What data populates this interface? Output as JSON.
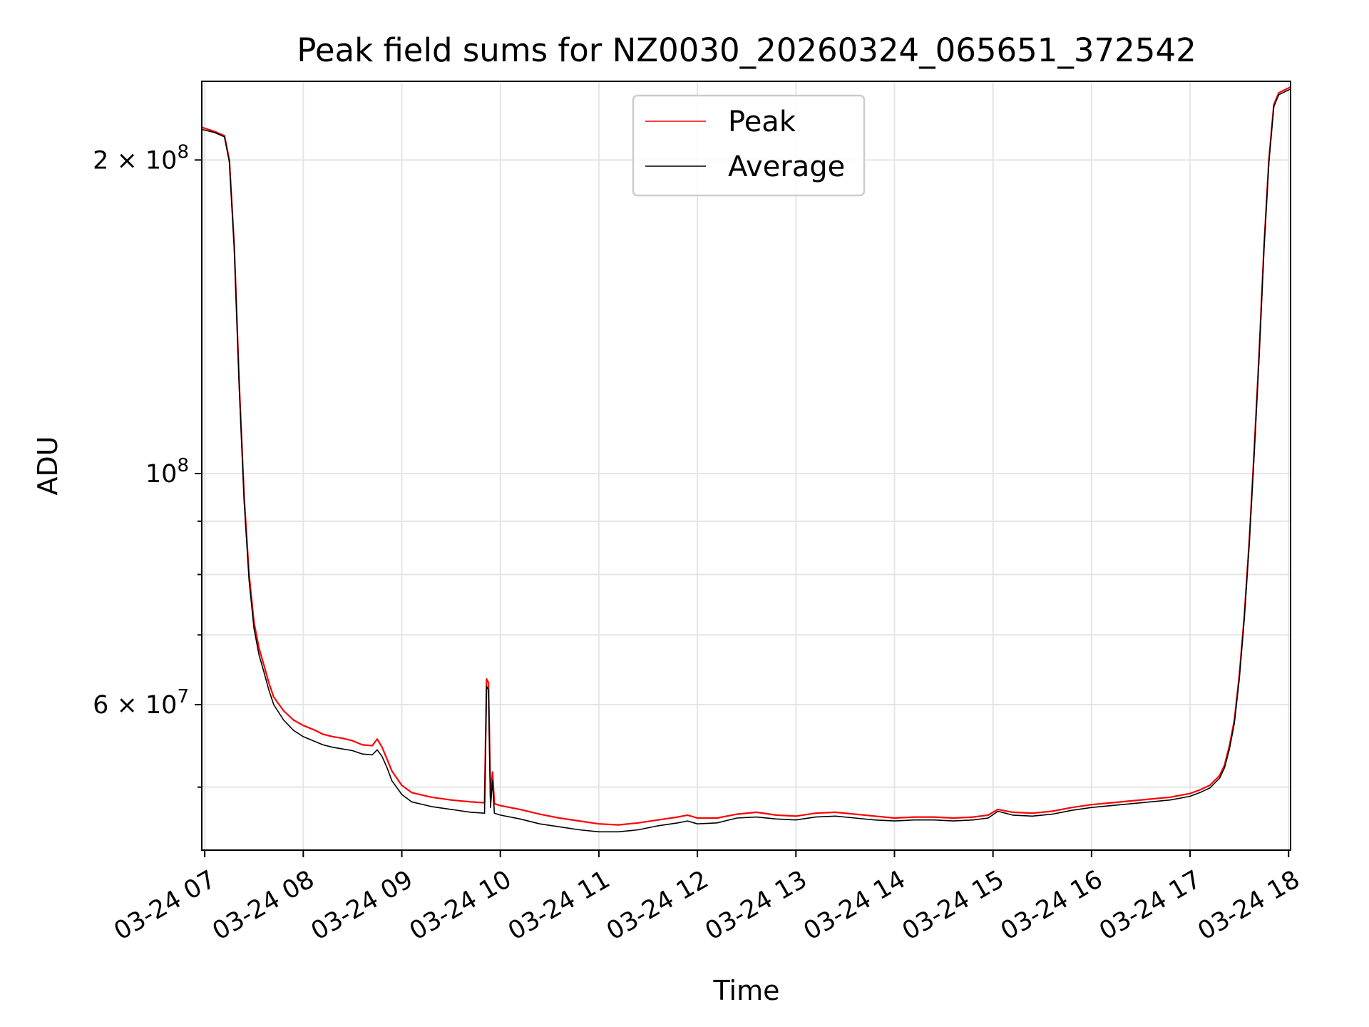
{
  "chart_data": {
    "type": "line",
    "title": "Peak field sums for NZ0030_20260324_065651_372542",
    "xlabel": "Time",
    "ylabel": "ADU",
    "y_scale": "log",
    "ylim": [
      43500000,
      238000000
    ],
    "x_unit": "hour on 2026-03-24",
    "xlim": [
      6.97,
      18.02
    ],
    "x_tick_values": [
      7,
      8,
      9,
      10,
      11,
      12,
      13,
      14,
      15,
      16,
      17,
      18
    ],
    "x_tick_labels": [
      "03-24 07",
      "03-24 08",
      "03-24 09",
      "03-24 10",
      "03-24 11",
      "03-24 12",
      "03-24 13",
      "03-24 14",
      "03-24 15",
      "03-24 16",
      "03-24 17",
      "03-24 18"
    ],
    "y_major_ticks": [
      {
        "value": 200000000,
        "label_base": "2 × 10",
        "label_exp": "8"
      },
      {
        "value": 100000000,
        "label_base": "10",
        "label_exp": "8"
      },
      {
        "value": 60000000,
        "label_base": "6 × 10",
        "label_exp": "7"
      }
    ],
    "y_minor_ticks": [
      50000000,
      70000000,
      80000000,
      90000000
    ],
    "grid": true,
    "legend_position": "upper center",
    "series": [
      {
        "name": "Peak",
        "color": "#ff0000",
        "x": [
          6.97,
          7.1,
          7.2,
          7.25,
          7.3,
          7.35,
          7.4,
          7.45,
          7.5,
          7.55,
          7.6,
          7.65,
          7.7,
          7.8,
          7.9,
          8.0,
          8.1,
          8.2,
          8.3,
          8.4,
          8.5,
          8.6,
          8.7,
          8.75,
          8.8,
          8.85,
          8.9,
          9.0,
          9.1,
          9.3,
          9.5,
          9.7,
          9.84,
          9.86,
          9.88,
          9.9,
          9.92,
          9.94,
          10.0,
          10.2,
          10.4,
          10.6,
          10.8,
          11.0,
          11.2,
          11.4,
          11.6,
          11.8,
          11.9,
          12.0,
          12.2,
          12.4,
          12.6,
          12.8,
          13.0,
          13.2,
          13.4,
          13.6,
          13.8,
          14.0,
          14.2,
          14.4,
          14.6,
          14.8,
          14.95,
          15.05,
          15.2,
          15.4,
          15.6,
          15.8,
          16.0,
          16.2,
          16.4,
          16.6,
          16.8,
          17.0,
          17.1,
          17.2,
          17.3,
          17.35,
          17.4,
          17.45,
          17.5,
          17.55,
          17.6,
          17.65,
          17.7,
          17.75,
          17.8,
          17.85,
          17.9,
          18.02
        ],
        "y": [
          215000000,
          213000000,
          211000000,
          200000000,
          165000000,
          122000000,
          95000000,
          80000000,
          72000000,
          68000000,
          65500000,
          63000000,
          61000000,
          59200000,
          58000000,
          57300000,
          56800000,
          56200000,
          55900000,
          55700000,
          55400000,
          54900000,
          54800000,
          55600000,
          54600000,
          53200000,
          51800000,
          50200000,
          49400000,
          48900000,
          48600000,
          48400000,
          48300000,
          63500000,
          63000000,
          48900000,
          51700000,
          48200000,
          48000000,
          47600000,
          47100000,
          46700000,
          46400000,
          46100000,
          46000000,
          46200000,
          46500000,
          46800000,
          47000000,
          46700000,
          46700000,
          47100000,
          47300000,
          47000000,
          46900000,
          47200000,
          47300000,
          47100000,
          46900000,
          46700000,
          46800000,
          46800000,
          46700000,
          46800000,
          47000000,
          47600000,
          47300000,
          47200000,
          47400000,
          47800000,
          48100000,
          48300000,
          48500000,
          48700000,
          48900000,
          49300000,
          49700000,
          50200000,
          51300000,
          52500000,
          54800000,
          58000000,
          64000000,
          73000000,
          86000000,
          105000000,
          130000000,
          165000000,
          200000000,
          226000000,
          232000000,
          235000000
        ]
      },
      {
        "name": "Average",
        "color": "#000000",
        "x": [
          6.97,
          7.1,
          7.2,
          7.25,
          7.3,
          7.35,
          7.4,
          7.45,
          7.5,
          7.55,
          7.6,
          7.65,
          7.7,
          7.8,
          7.9,
          8.0,
          8.1,
          8.2,
          8.3,
          8.4,
          8.5,
          8.6,
          8.7,
          8.75,
          8.8,
          8.85,
          8.9,
          9.0,
          9.1,
          9.3,
          9.5,
          9.7,
          9.84,
          9.86,
          9.88,
          9.9,
          9.92,
          9.94,
          10.0,
          10.2,
          10.4,
          10.6,
          10.8,
          11.0,
          11.2,
          11.4,
          11.6,
          11.8,
          11.9,
          12.0,
          12.2,
          12.4,
          12.6,
          12.8,
          13.0,
          13.2,
          13.4,
          13.6,
          13.8,
          14.0,
          14.2,
          14.4,
          14.6,
          14.8,
          14.95,
          15.05,
          15.2,
          15.4,
          15.6,
          15.8,
          16.0,
          16.2,
          16.4,
          16.6,
          16.8,
          17.0,
          17.1,
          17.2,
          17.3,
          17.35,
          17.4,
          17.45,
          17.5,
          17.55,
          17.6,
          17.65,
          17.7,
          17.75,
          17.8,
          17.85,
          17.9,
          18.02
        ],
        "y": [
          214000000,
          212500000,
          210500000,
          199000000,
          164000000,
          121000000,
          94000000,
          79000000,
          71000000,
          67000000,
          64500000,
          62000000,
          60000000,
          58000000,
          56700000,
          55900000,
          55400000,
          54900000,
          54600000,
          54400000,
          54200000,
          53800000,
          53700000,
          54300000,
          53500000,
          52200000,
          50700000,
          49200000,
          48400000,
          47900000,
          47600000,
          47300000,
          47200000,
          62500000,
          62000000,
          47800000,
          50700000,
          47200000,
          47000000,
          46600000,
          46100000,
          45800000,
          45500000,
          45300000,
          45300000,
          45500000,
          45900000,
          46200000,
          46400000,
          46100000,
          46200000,
          46700000,
          46800000,
          46600000,
          46500000,
          46800000,
          46900000,
          46700000,
          46500000,
          46400000,
          46500000,
          46500000,
          46400000,
          46500000,
          46700000,
          47400000,
          47000000,
          46900000,
          47100000,
          47500000,
          47800000,
          48000000,
          48200000,
          48400000,
          48600000,
          49000000,
          49400000,
          49900000,
          51000000,
          52200000,
          54400000,
          57600000,
          63500000,
          72500000,
          85500000,
          104000000,
          129000000,
          164000000,
          199000000,
          225000000,
          231000000,
          234000000
        ]
      }
    ]
  }
}
